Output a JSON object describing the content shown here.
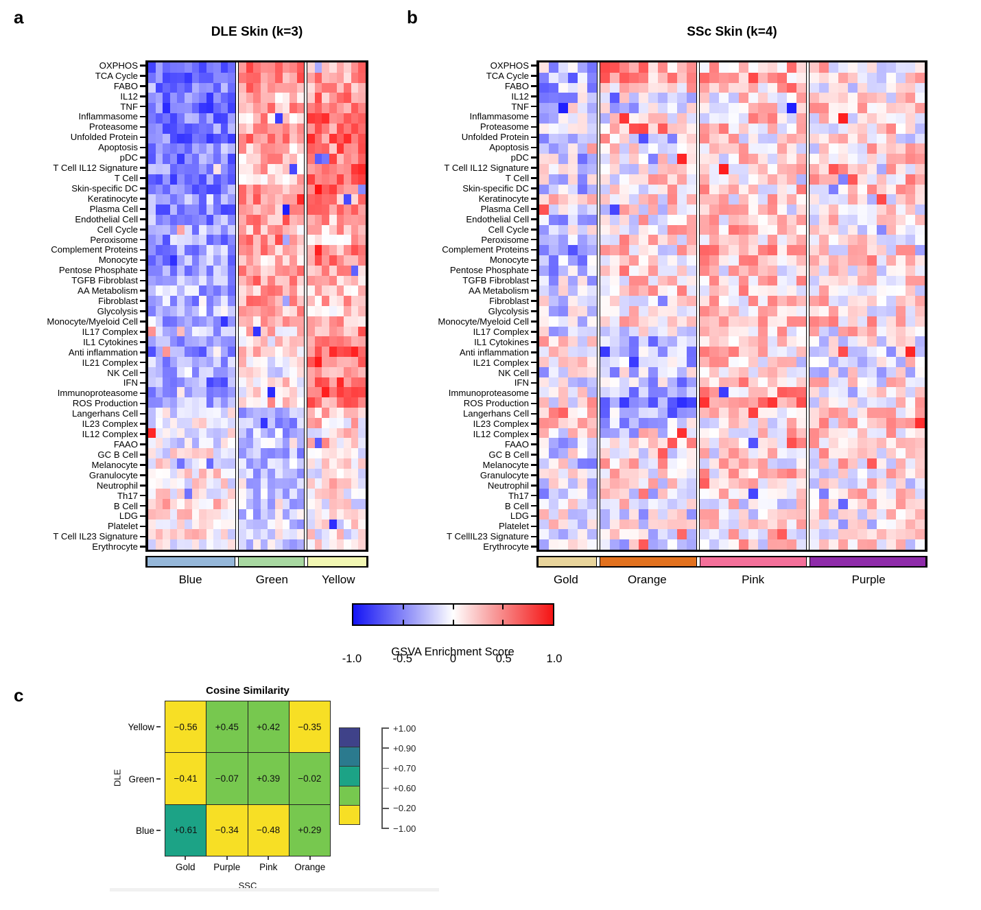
{
  "colorbar": {
    "caption": "GSVA Enrichment Score",
    "tick_labels": [
      "-1.0",
      "-0.5",
      "0",
      "0.5",
      "1.0"
    ],
    "tick_positions": [
      0,
      25,
      50,
      75,
      100
    ],
    "gradient_colors": [
      "#1414F5",
      "#FFFFFF",
      "#F51414"
    ]
  },
  "chart_data": [
    {
      "id": "dle_heatmap",
      "type": "heatmap",
      "panel_letter": "a",
      "title": "DLE Skin (k=3)",
      "value_range": [
        -1,
        1
      ],
      "noise": 0.3,
      "outlier_prob": 0.05,
      "seed": 1337,
      "rows": [
        "OXPHOS",
        "TCA Cycle",
        "FABO",
        "IL12",
        "TNF",
        "Inflammasome",
        "Proteasome",
        "Unfolded Protein",
        "Apoptosis",
        "pDC",
        "T Cell IL12 Signature",
        "T Cell",
        "Skin-specific DC",
        "Keratinocyte",
        "Plasma Cell",
        "Endothelial Cell",
        "Cell Cycle",
        "Peroxisome",
        "Complement Proteins",
        "Monocyte",
        "Pentose Phosphate",
        "TGFB Fibroblast",
        "AA Metabolism",
        "Fibroblast",
        "Glycolysis",
        "Monocyte/Myeloid Cell",
        "IL17 Complex",
        "IL1 Cytokines",
        "Anti inflammation",
        "IL21 Complex",
        "NK Cell",
        "IFN",
        "Immunoproteasome",
        "ROS Production",
        "Langerhans Cell",
        "IL23 Complex",
        "IL12 Complex",
        "FAAO",
        "GC B Cell",
        "Melanocyte",
        "Granulocyte",
        "Neutrophil",
        "Th17",
        "B Cell",
        "LDG",
        "Platelet",
        "T Cell IL23 Signature",
        "Erythrocyte"
      ],
      "groups": [
        {
          "name": "Blue",
          "columns": 12,
          "strip_color": "#95B7D9",
          "row_means": [
            -0.55,
            -0.5,
            -0.45,
            -0.5,
            -0.55,
            -0.5,
            -0.45,
            -0.5,
            -0.45,
            -0.5,
            -0.5,
            -0.5,
            -0.45,
            -0.35,
            -0.45,
            -0.4,
            -0.35,
            -0.4,
            -0.35,
            -0.4,
            -0.35,
            -0.35,
            -0.3,
            -0.3,
            -0.25,
            -0.3,
            -0.3,
            -0.45,
            -0.4,
            -0.35,
            -0.3,
            -0.45,
            -0.5,
            -0.35,
            -0.1,
            -0.05,
            0.0,
            -0.05,
            0.0,
            0.05,
            0.1,
            0.05,
            0.05,
            0.15,
            0.2,
            0.1,
            0.05,
            0.05
          ]
        },
        {
          "name": "Green",
          "columns": 9,
          "strip_color": "#A8D8A1",
          "row_means": [
            0.45,
            0.5,
            0.4,
            0.3,
            0.35,
            0.3,
            0.4,
            0.45,
            0.3,
            0.25,
            0.3,
            0.25,
            0.35,
            0.45,
            0.3,
            0.45,
            0.35,
            0.45,
            0.35,
            0.3,
            0.35,
            0.4,
            0.35,
            0.35,
            0.25,
            0.2,
            0.15,
            0.1,
            0.15,
            0.05,
            0.0,
            0.15,
            0.1,
            0.2,
            -0.25,
            -0.3,
            -0.3,
            -0.1,
            -0.25,
            -0.2,
            -0.25,
            -0.15,
            -0.2,
            -0.15,
            -0.2,
            -0.15,
            -0.1,
            -0.15
          ]
        },
        {
          "name": "Yellow",
          "columns": 8,
          "strip_color": "#F2F7B3",
          "row_means": [
            0.35,
            0.4,
            0.35,
            0.45,
            0.5,
            0.55,
            0.5,
            0.55,
            0.5,
            0.55,
            0.6,
            0.65,
            0.65,
            0.4,
            0.5,
            0.35,
            0.3,
            0.25,
            0.4,
            0.45,
            0.3,
            0.35,
            0.3,
            0.3,
            0.3,
            0.35,
            0.4,
            0.55,
            0.6,
            0.45,
            0.4,
            0.6,
            0.6,
            0.5,
            0.2,
            0.15,
            0.1,
            0.2,
            0.1,
            0.1,
            0.05,
            0.1,
            0.05,
            0.0,
            -0.05,
            0.0,
            0.05,
            0.0
          ]
        }
      ]
    },
    {
      "id": "ssc_heatmap",
      "type": "heatmap",
      "panel_letter": "b",
      "title": "SSc Skin (k=4)",
      "value_range": [
        -1,
        1
      ],
      "noise": 0.38,
      "outlier_prob": 0.06,
      "seed": 7331,
      "rows": [
        "OXPHOS",
        "TCA Cycle",
        "FABO",
        "IL12",
        "TNF",
        "Inflammasome",
        "Proteasome",
        "Unfolded Protein",
        "Apoptosis",
        "pDC",
        "T Cell IL12 Signature",
        "T Cell",
        "Skin-specific DC",
        "Keratinocyte",
        "Plasma Cell",
        "Endothelial Cell",
        "Cell Cycle",
        "Peroxisome",
        "Complement Proteins",
        "Monocyte",
        "Pentose Phosphate",
        "TGFB Fibroblast",
        "AA Metabolism",
        "Fibroblast",
        "Glycolysis",
        "Monocyte/Myeloid Cell",
        "IL17 Complex",
        "IL1 Cytokines",
        "Anti inflammation",
        "IL21 Complex",
        "NK Cell",
        "IFN",
        "Immunoproteasome",
        "ROS Production",
        "Langerhans Cell",
        "IL23 Complex",
        "IL12 Complex",
        "FAAO",
        "GC B Cell",
        "Melanocyte",
        "Granulocyte",
        "Neutrophil",
        "Th17",
        "B Cell",
        "LDG",
        "Platelet",
        "T CellIL23 Signature",
        "Erythrocyte"
      ],
      "groups": [
        {
          "name": "Gold",
          "columns": 6,
          "strip_color": "#E8D49B",
          "row_means": [
            -0.25,
            -0.3,
            -0.25,
            -0.2,
            -0.15,
            -0.1,
            -0.1,
            -0.15,
            -0.15,
            -0.2,
            -0.1,
            -0.15,
            -0.2,
            0.1,
            -0.1,
            -0.2,
            -0.1,
            -0.15,
            -0.3,
            -0.3,
            -0.2,
            -0.15,
            -0.1,
            -0.1,
            -0.1,
            -0.15,
            -0.1,
            0.1,
            0.15,
            -0.05,
            -0.1,
            -0.05,
            -0.1,
            0.1,
            0.3,
            0.1,
            0.05,
            -0.2,
            -0.1,
            0.0,
            -0.05,
            -0.1,
            -0.15,
            -0.05,
            -0.05,
            0.0,
            -0.1,
            -0.05
          ]
        },
        {
          "name": "Orange",
          "columns": 10,
          "strip_color": "#E2711E",
          "row_means": [
            0.35,
            0.4,
            0.2,
            -0.1,
            -0.1,
            0.0,
            0.35,
            0.1,
            0.0,
            0.05,
            0.0,
            0.1,
            0.1,
            0.1,
            0.05,
            0.1,
            0.1,
            0.15,
            0.1,
            0.1,
            0.2,
            0.1,
            0.15,
            0.1,
            0.15,
            0.1,
            -0.15,
            -0.35,
            -0.2,
            -0.25,
            -0.2,
            -0.25,
            -0.45,
            -0.55,
            -0.35,
            -0.25,
            -0.2,
            0.3,
            0.1,
            0.15,
            0.1,
            0.05,
            -0.05,
            0.1,
            -0.1,
            -0.05,
            -0.05,
            -0.1
          ]
        },
        {
          "name": "Pink",
          "columns": 11,
          "strip_color": "#F4709A",
          "row_means": [
            0.2,
            0.25,
            0.25,
            0.1,
            0.15,
            0.15,
            0.2,
            0.1,
            0.1,
            0.1,
            0.1,
            0.1,
            0.15,
            0.15,
            0.1,
            0.15,
            0.2,
            0.2,
            0.25,
            0.3,
            0.15,
            0.25,
            0.2,
            0.2,
            0.15,
            0.25,
            0.2,
            0.25,
            0.2,
            0.15,
            0.1,
            0.2,
            0.3,
            0.45,
            0.1,
            0.1,
            0.15,
            0.15,
            0.1,
            0.1,
            0.15,
            0.1,
            0.1,
            0.05,
            0.05,
            0.05,
            0.1,
            0.05
          ]
        },
        {
          "name": "Purple",
          "columns": 12,
          "strip_color": "#8E2BA9",
          "row_means": [
            0.1,
            0.1,
            0.05,
            0.1,
            0.1,
            0.15,
            0.1,
            0.05,
            0.1,
            0.1,
            0.15,
            0.2,
            0.2,
            0.05,
            0.1,
            0.1,
            0.05,
            0.0,
            0.15,
            0.2,
            0.1,
            0.1,
            0.05,
            0.1,
            0.05,
            0.15,
            0.1,
            -0.1,
            -0.15,
            0.0,
            -0.05,
            0.05,
            -0.1,
            0.05,
            0.1,
            0.15,
            0.1,
            0.1,
            0.15,
            0.1,
            0.1,
            0.05,
            0.05,
            0.1,
            0.0,
            -0.05,
            0.05,
            0.0
          ]
        }
      ]
    },
    {
      "id": "cosine_similarity",
      "type": "heatmap",
      "panel_letter": "c",
      "title": "Cosine Similarity",
      "ylabel": "DLE",
      "xlabel": "SSC",
      "row_labels": [
        "Yellow",
        "Green",
        "Blue"
      ],
      "col_labels": [
        "Gold",
        "Purple",
        "Pink",
        "Orange"
      ],
      "values": [
        [
          -0.56,
          0.45,
          0.42,
          -0.35
        ],
        [
          -0.41,
          -0.07,
          0.39,
          -0.02
        ],
        [
          0.61,
          -0.34,
          -0.48,
          0.29
        ]
      ],
      "cell_text": [
        [
          "−0.56",
          "+0.45",
          "+0.42",
          "−0.35"
        ],
        [
          "−0.41",
          "−0.07",
          "+0.39",
          "−0.02"
        ],
        [
          "+0.61",
          "−0.34",
          "−0.48",
          "+0.29"
        ]
      ],
      "cell_colors": [
        [
          "yellow",
          "green",
          "green",
          "yellow"
        ],
        [
          "yellow",
          "green",
          "green",
          "green"
        ],
        [
          "teal",
          "yellow",
          "yellow",
          "green"
        ]
      ],
      "palette": {
        "navy": "#3F4289",
        "tealblue": "#2B7A8E",
        "teal": "#1CA386",
        "green": "#77C84F",
        "yellow": "#F7DF25"
      },
      "legend": {
        "block_colors": [
          "navy",
          "tealblue",
          "teal",
          "green",
          "yellow"
        ],
        "tick_labels": [
          "+1.00",
          "+0.90",
          "+0.70",
          "+0.60",
          "−0.20",
          "−1.00"
        ]
      }
    }
  ]
}
